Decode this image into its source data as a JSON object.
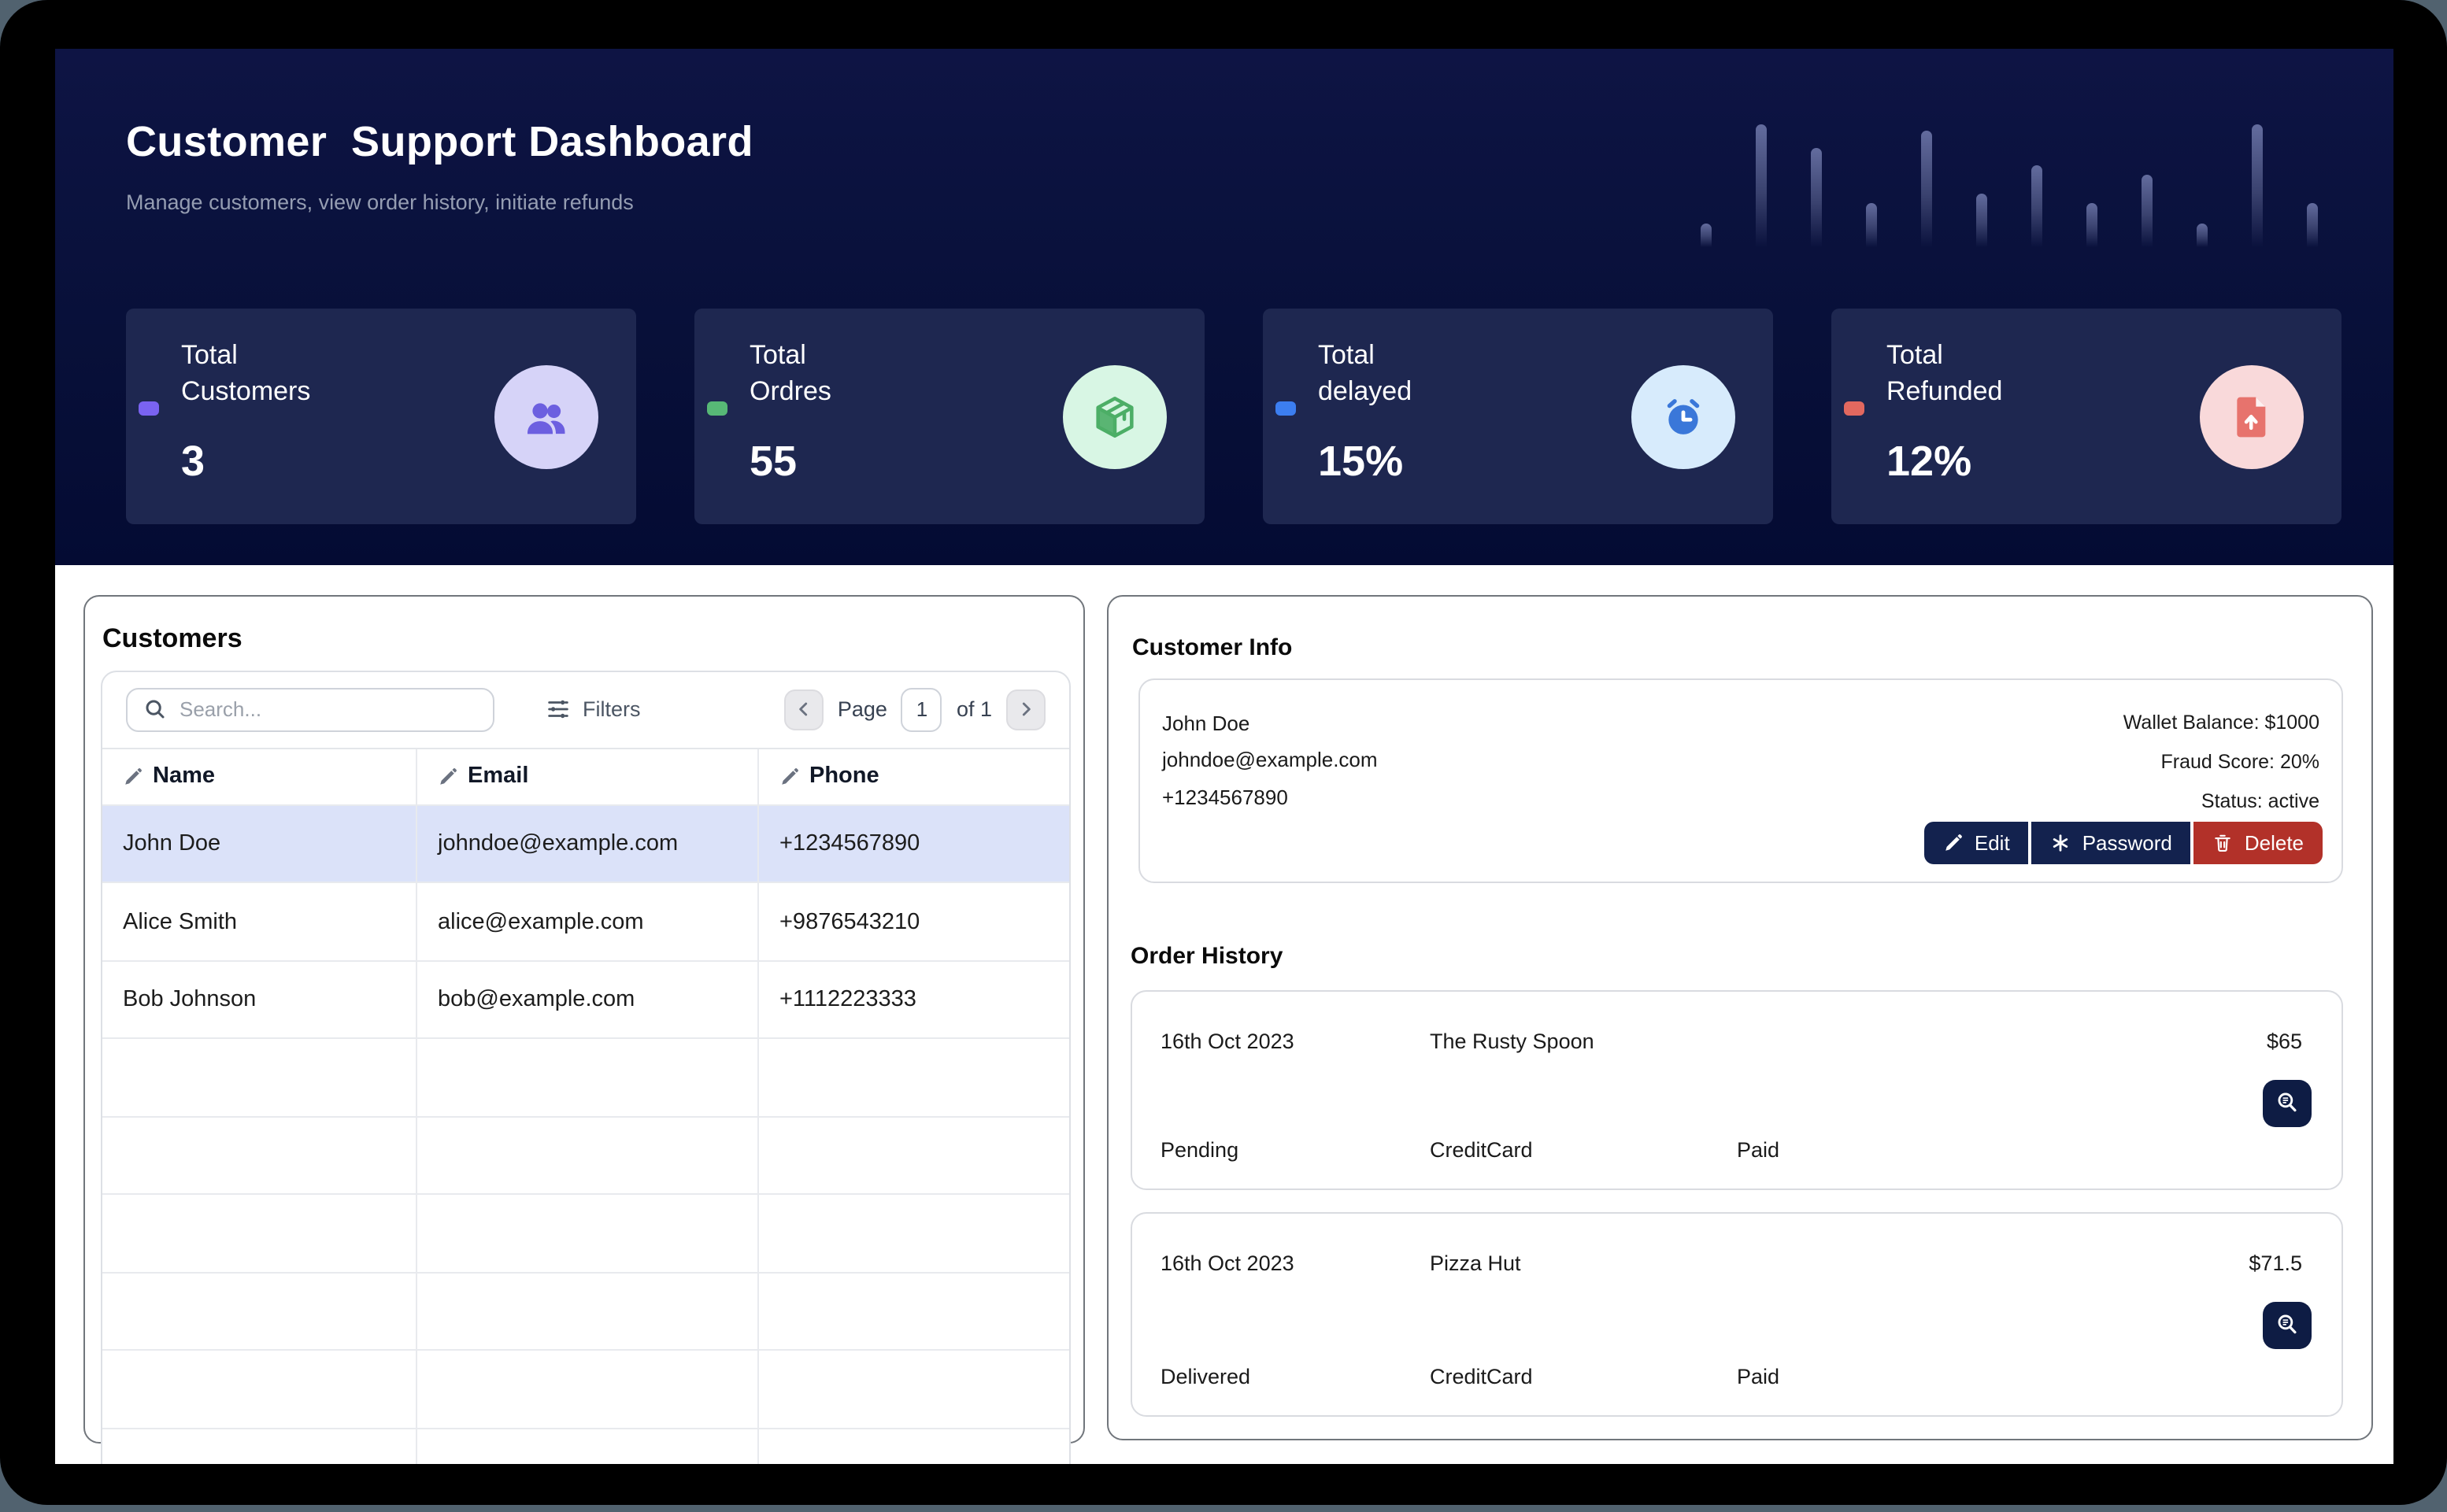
{
  "header": {
    "title": "Customer  Support Dashboard",
    "subtitle": "Manage customers, view order history, initiate refunds"
  },
  "stats": [
    {
      "label_line1": "Total",
      "label_line2": "Customers",
      "value": "3",
      "accent": "#7A63F1",
      "icon": "users-icon",
      "icon_bg": "#D6D3F8",
      "icon_color": "#6C5FE0"
    },
    {
      "label_line1": "Total",
      "label_line2": "Ordres",
      "value": "55",
      "accent": "#57B876",
      "icon": "package-icon",
      "icon_bg": "#D8F6E4",
      "icon_color": "#4CAE66"
    },
    {
      "label_line1": "Total",
      "label_line2": "delayed",
      "value": "15%",
      "accent": "#3C7EF0",
      "icon": "alarm-clock-icon",
      "icon_bg": "#D7EBFC",
      "icon_color": "#3A77D9"
    },
    {
      "label_line1": "Total",
      "label_line2": "Refunded",
      "value": "12%",
      "accent": "#E2685F",
      "icon": "file-upload-icon",
      "icon_bg": "#F9D9DA",
      "icon_color": "#E7736D"
    }
  ],
  "customers_panel": {
    "title": "Customers",
    "search_placeholder": "Search...",
    "filters_label": "Filters",
    "pagination": {
      "page_label": "Page",
      "page_value": "1",
      "of_label": "of 1"
    },
    "columns": [
      "Name",
      "Email",
      "Phone"
    ],
    "rows": [
      {
        "name": "John Doe",
        "email": "johndoe@example.com",
        "phone": "+1234567890",
        "selected": true
      },
      {
        "name": "Alice Smith",
        "email": "alice@example.com",
        "phone": "+9876543210",
        "selected": false
      },
      {
        "name": "Bob Johnson",
        "email": "bob@example.com",
        "phone": "+1112223333",
        "selected": false
      }
    ],
    "empty_row_count": 6
  },
  "customer_info": {
    "title": "Customer Info",
    "name": "John Doe",
    "email": "johndoe@example.com",
    "phone": "+1234567890",
    "wallet": "Wallet Balance: $1000",
    "fraud": "Fraud Score: 20%",
    "status": "Status: active",
    "buttons": {
      "edit": "Edit",
      "password": "Password",
      "delete": "Delete"
    }
  },
  "order_history": {
    "title": "Order History",
    "orders": [
      {
        "date": "16th Oct 2023",
        "vendor": "The Rusty Spoon",
        "amount": "$65",
        "status": "Pending",
        "payment_method": "CreditCard",
        "payment_status": "Paid"
      },
      {
        "date": "16th Oct 2023",
        "vendor": "Pizza Hut",
        "amount": "$71.5",
        "status": "Delivered",
        "payment_method": "CreditCard",
        "payment_status": "Paid"
      }
    ]
  },
  "decoration": {
    "bar_heights": [
      15,
      78,
      63,
      28,
      74,
      34,
      52,
      28,
      46,
      15,
      78,
      28
    ]
  },
  "colors": {
    "outer_background": "#51626F",
    "frame": "#000000",
    "hero_navy": "#081039",
    "stat_card_navy": "#1E2750",
    "selected_row": "#DBE2F9",
    "navy_button": "#13224E",
    "delete_button": "#B23129",
    "detail_button": "#0E1C44"
  }
}
